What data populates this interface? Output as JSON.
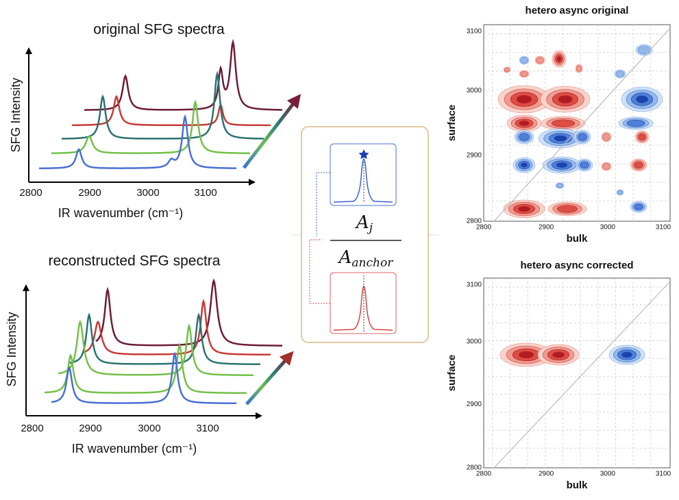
{
  "panels": {
    "original": {
      "title": "original SFG spectra",
      "ylabel": "SFG Intensity",
      "xlabel": "IR wavenumber (cm⁻¹)",
      "xticks": [
        "2800",
        "2900",
        "3000",
        "3100"
      ]
    },
    "reconstructed": {
      "title": "reconstructed SFG spectra",
      "ylabel": "SFG Intensity",
      "xlabel": "IR wavenumber (cm⁻¹)",
      "xticks": [
        "2800",
        "2900",
        "3000",
        "3100"
      ]
    },
    "center": {
      "numerator": "A",
      "numerator_sub": "j",
      "denominator": "A",
      "denominator_sub": "anchor"
    },
    "async_original": {
      "title": "hetero async original",
      "xlabel": "bulk",
      "ylabel": "surface",
      "xticks": [
        "2800",
        "2900",
        "3000",
        "3100"
      ],
      "yticks": [
        "2800",
        "2900",
        "3000",
        "3100"
      ]
    },
    "async_corrected": {
      "title": "hetero async corrected",
      "xlabel": "bulk",
      "ylabel": "surface",
      "xticks": [
        "2800",
        "2900",
        "3000",
        "3100"
      ],
      "yticks": [
        "2800",
        "2900",
        "3000",
        "3100"
      ]
    }
  }
}
